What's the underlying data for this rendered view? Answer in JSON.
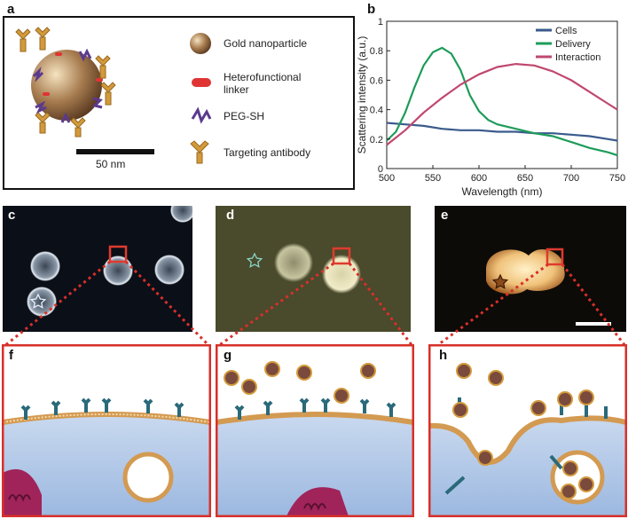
{
  "panels": {
    "a": "a",
    "b": "b",
    "c": "c",
    "d": "d",
    "e": "e",
    "f": "f",
    "g": "g",
    "h": "h"
  },
  "panel_a": {
    "legend": [
      {
        "icon": "gold-nanoparticle-icon",
        "label": "Gold nanoparticle"
      },
      {
        "icon": "linker-icon",
        "label": "Heterofunctional linker"
      },
      {
        "icon": "peg-sh-icon",
        "label": "PEG-SH"
      },
      {
        "icon": "antibody-icon",
        "label": "Targeting antibody"
      }
    ],
    "scalebar": "50 nm"
  },
  "colors": {
    "cells": "#3a5a8c",
    "delivery": "#1e9c5a",
    "interaction": "#c0486e",
    "frame_red": "#d8302a",
    "membrane": "#d39a52",
    "cytoplasm": "#b9cfeb"
  },
  "chart_data": {
    "type": "line",
    "xlabel": "Wavelength (nm)",
    "ylabel": "Scattering intensity (a.u.)",
    "xlim": [
      500,
      750
    ],
    "ylim": [
      0,
      1
    ],
    "xticks": [
      500,
      550,
      600,
      650,
      700,
      750
    ],
    "yticks": [
      0,
      0.2,
      0.4,
      0.6,
      0.8,
      1
    ],
    "legend_position": "top-right",
    "series": [
      {
        "name": "Cells",
        "x": [
          500,
          520,
          540,
          560,
          580,
          600,
          620,
          640,
          660,
          680,
          700,
          720,
          740,
          750
        ],
        "y": [
          0.31,
          0.3,
          0.29,
          0.27,
          0.26,
          0.26,
          0.25,
          0.25,
          0.24,
          0.24,
          0.23,
          0.22,
          0.2,
          0.19
        ]
      },
      {
        "name": "Delivery",
        "x": [
          500,
          510,
          520,
          530,
          540,
          550,
          560,
          570,
          580,
          590,
          600,
          610,
          620,
          640,
          660,
          680,
          700,
          720,
          740,
          750
        ],
        "y": [
          0.19,
          0.25,
          0.38,
          0.55,
          0.7,
          0.79,
          0.82,
          0.78,
          0.67,
          0.5,
          0.39,
          0.33,
          0.3,
          0.27,
          0.24,
          0.22,
          0.18,
          0.14,
          0.11,
          0.09
        ]
      },
      {
        "name": "Interaction",
        "x": [
          500,
          520,
          540,
          560,
          580,
          600,
          620,
          640,
          660,
          680,
          700,
          720,
          740,
          750
        ],
        "y": [
          0.16,
          0.26,
          0.38,
          0.48,
          0.57,
          0.64,
          0.69,
          0.71,
          0.7,
          0.66,
          0.6,
          0.52,
          0.44,
          0.4
        ]
      }
    ]
  }
}
